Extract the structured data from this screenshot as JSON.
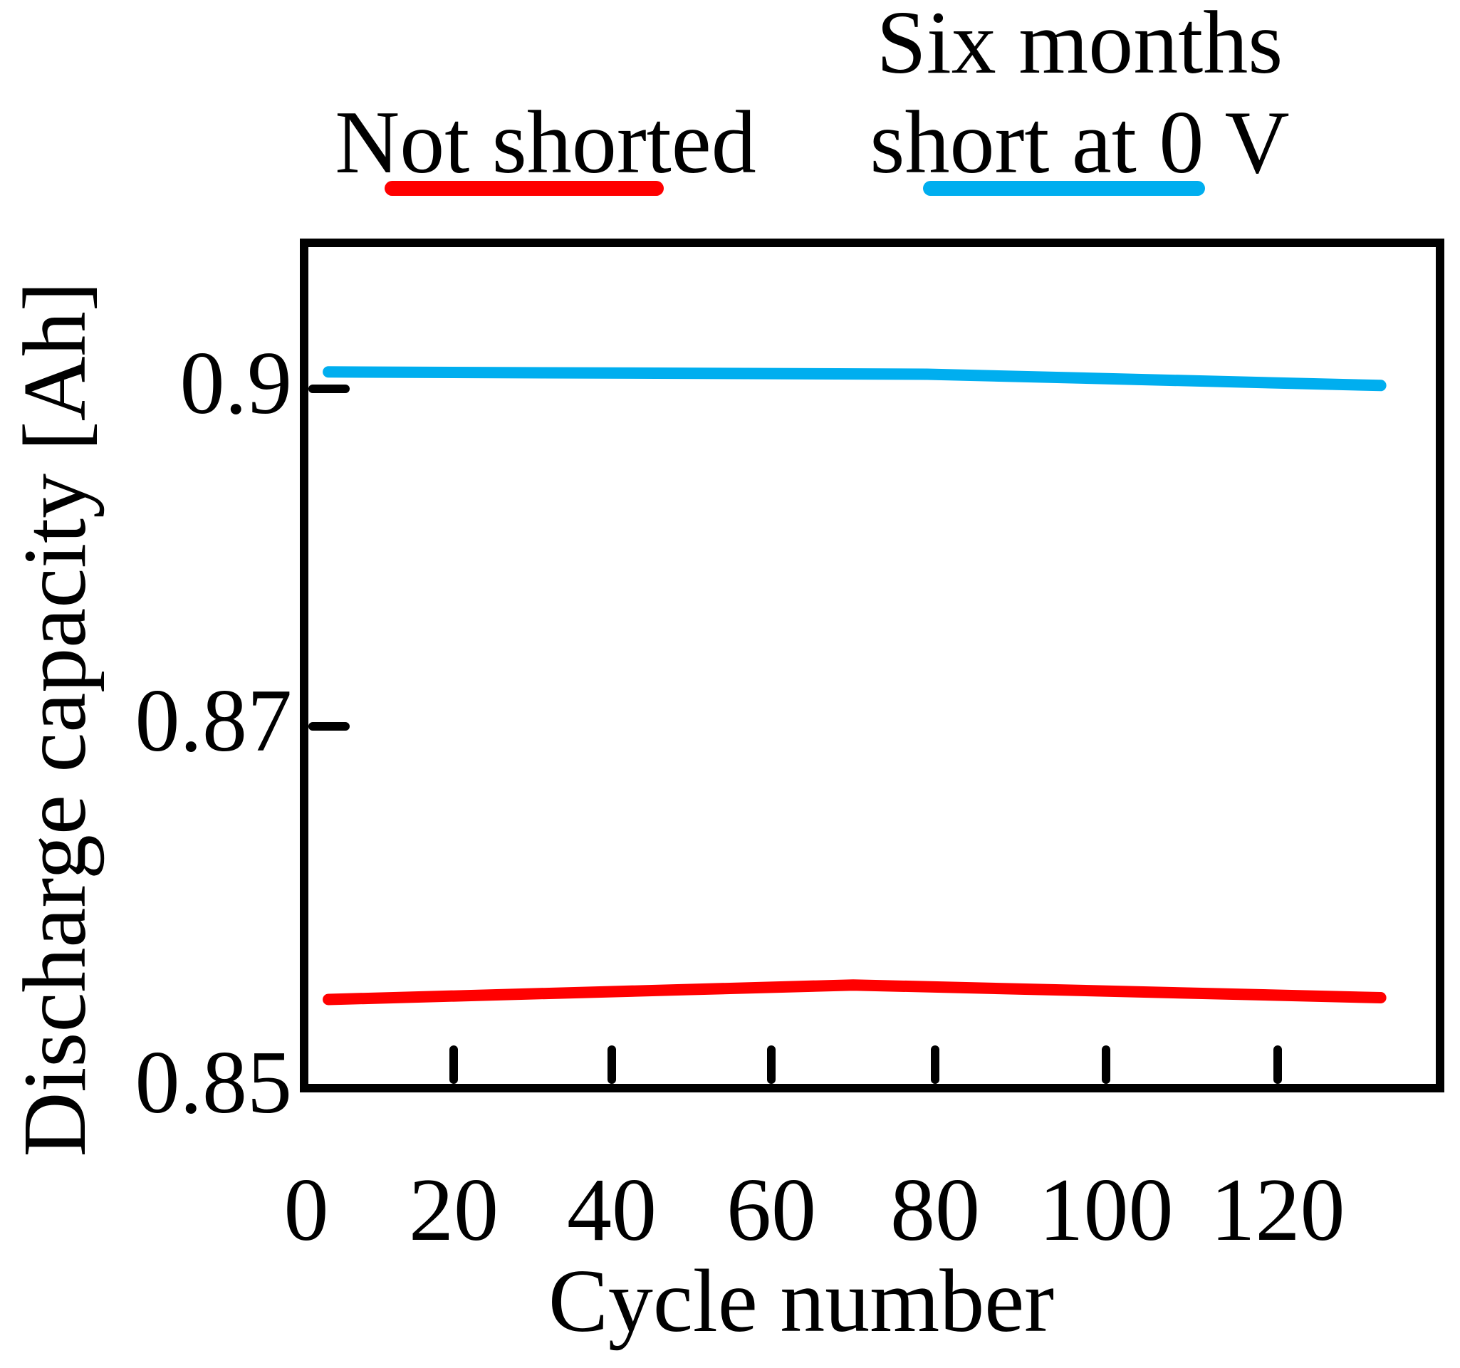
{
  "legend": {
    "not_shorted": {
      "label": "Not shorted",
      "color": "#ff0000"
    },
    "six_months_short": {
      "line1": "Six months",
      "line2": "short at 0 V",
      "color": "#00aeef"
    }
  },
  "axes": {
    "x_label": "Cycle number",
    "y_label": "Discharge capacity [Ah]"
  },
  "chart_data": {
    "type": "line",
    "title": "",
    "xlabel": "Cycle number",
    "ylabel": "Discharge capacity [Ah]",
    "xlim": [
      0,
      141
    ],
    "ylim": [
      0.85,
      0.912
    ],
    "x_ticks": [
      0,
      20,
      40,
      60,
      80,
      100,
      120
    ],
    "x_tick_labels": [
      "0",
      "20",
      "40",
      "60",
      "80",
      "100",
      "120"
    ],
    "y_ticks": [
      0.85,
      0.87,
      0.9
    ],
    "y_tick_labels": [
      "0.85",
      "0.87",
      "0.9"
    ],
    "grid": false,
    "legend_position": "top",
    "series": [
      {
        "name": "Not shorted",
        "color": "#ff0000",
        "points": [
          {
            "cycle": 3,
            "capacity_ah": 0.8549
          },
          {
            "cycle": 70,
            "capacity_ah": 0.8557
          },
          {
            "cycle": 132,
            "capacity_ah": 0.855
          }
        ]
      },
      {
        "name": "Six months short at 0 V",
        "color": "#00aeef",
        "points": [
          {
            "cycle": 3,
            "capacity_ah": 0.9015
          },
          {
            "cycle": 79,
            "capacity_ah": 0.9013
          },
          {
            "cycle": 132,
            "capacity_ah": 0.9003
          }
        ]
      }
    ]
  }
}
